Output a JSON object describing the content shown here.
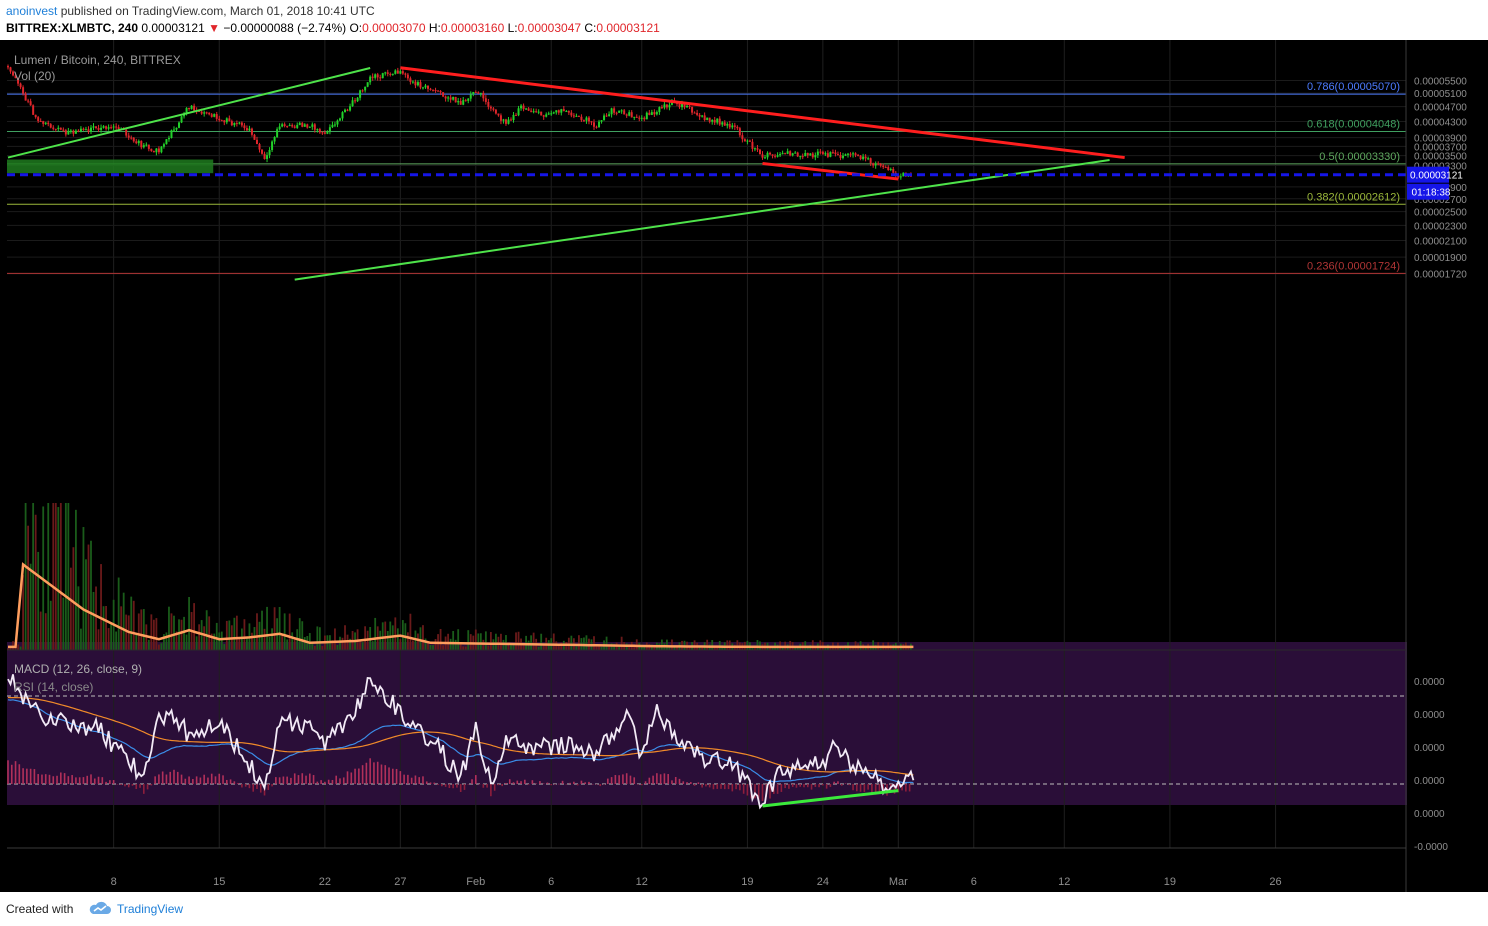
{
  "header": {
    "author": "anoinvest",
    "published_text": " published on TradingView.com, March 01, 2018 10:41 UTC",
    "symbol": "BITTREX:XLMBTC, 240",
    "price": "0.00003121",
    "change_arrow": "▼",
    "change": "−0.00000088 (−2.74%)",
    "o_label": "O:",
    "o_value": "0.00003070",
    "h_label": "H:",
    "h_value": "0.00003160",
    "l_label": "L:",
    "l_value": "0.00003047",
    "c_label": "C:",
    "c_value": "0.00003121"
  },
  "legend": {
    "series_title": "Lumen / Bitcoin, 240, BITTREX",
    "volume": "Vol (20)",
    "macd": "MACD (12, 26, close, 9)",
    "rsi": "RSI (14, close)"
  },
  "footer": {
    "created_with": "Created with",
    "brand": "TradingView"
  },
  "colors": {
    "background": "#000000",
    "bull": "#22d12a",
    "bear": "#e0262b",
    "trendline_red": "#ff1e1e",
    "trendline_green": "#4ee34a",
    "price_line": "#1515e8",
    "rsi_band": "#2a0e38",
    "volume_ma": "#ff9e5e",
    "rsi_line": "#f2eaf6",
    "macd_line": "#3b8de8",
    "signal_line": "#f08a2a",
    "fib_786": "#4d7cff",
    "fib_618": "#40a060",
    "fib_5": "#5fa85f",
    "fib_382": "#9bb83a",
    "fib_236": "#b03535"
  },
  "chart_data": [
    {
      "type": "candlestick",
      "title": "Lumen / Bitcoin, 240, BITTREX",
      "x_ticks": [
        "8",
        "15",
        "22",
        "27",
        "Feb",
        "6",
        "12",
        "19",
        "24",
        "Mar",
        "6",
        "12",
        "19",
        "26"
      ],
      "y_ticks": [
        "0.00005500",
        "0.00005100",
        "0.00004700",
        "0.00004300",
        "0.00003900",
        "0.00003700",
        "0.00003500",
        "0.00003300",
        "0.00002900",
        "0.00002700",
        "0.00002500",
        "0.00002300",
        "0.00002100",
        "0.00001900",
        "0.00001720"
      ],
      "y_scale": "log",
      "ylim": [
        1.66e-05,
        6.05e-05
      ],
      "current_price": "0.00003121",
      "countdown": "01:18:38",
      "fibonacci": [
        {
          "level": 0.786,
          "value": 5.07e-05,
          "label": "0.786(0.00005070)"
        },
        {
          "level": 0.618,
          "value": 4.048e-05,
          "label": "0.618(0.00004048)"
        },
        {
          "level": 0.5,
          "value": 3.33e-05,
          "label": "0.5(0.00003330)"
        },
        {
          "level": 0.382,
          "value": 2.612e-05,
          "label": "0.382(0.00002612)"
        },
        {
          "level": 0.236,
          "value": 1.724e-05,
          "label": "0.236(0.00001724)"
        }
      ],
      "support_zone": {
        "low": 3.15e-05,
        "high": 3.42e-05
      },
      "trendlines": [
        {
          "color": "red",
          "from": [
            "Jan 27",
            5.94e-05
          ],
          "to": [
            "Mar 16",
            3.46e-05
          ]
        },
        {
          "color": "red",
          "from": [
            "Feb 20",
            3.34e-05
          ],
          "to": [
            "Mar 1",
            3.04e-05
          ]
        },
        {
          "color": "green",
          "from": [
            "Jan 1",
            3.46e-05
          ],
          "to": [
            "Jan 25",
            5.93e-05
          ]
        },
        {
          "color": "green",
          "from": [
            "Jan 20",
            1.66e-05
          ],
          "to": [
            "Mar 15",
            3.41e-05
          ]
        }
      ],
      "close_path": [
        [
          "Jan 1",
          6e-05
        ],
        [
          "Jan 3",
          4.3e-05
        ],
        [
          "Jan 5",
          4e-05
        ],
        [
          "Jan 8",
          4.2e-05
        ],
        [
          "Jan 10",
          3.7e-05
        ],
        [
          "Jan 11",
          3.6e-05
        ],
        [
          "Jan 13",
          4.7e-05
        ],
        [
          "Jan 15",
          4.4e-05
        ],
        [
          "Jan 17",
          4.1e-05
        ],
        [
          "Jan 18",
          3.45e-05
        ],
        [
          "Jan 19",
          4.2e-05
        ],
        [
          "Jan 21",
          4.2e-05
        ],
        [
          "Jan 22",
          3.95e-05
        ],
        [
          "Jan 23",
          4.4e-05
        ],
        [
          "Jan 24",
          4.9e-05
        ],
        [
          "Jan 25",
          5.6e-05
        ],
        [
          "Jan 26",
          5.7e-05
        ],
        [
          "Jan 27",
          5.8e-05
        ],
        [
          "Jan 28",
          5.4e-05
        ],
        [
          "Jan 29",
          5.2e-05
        ],
        [
          "Jan 30",
          5e-05
        ],
        [
          "Jan 31",
          4.8e-05
        ],
        [
          "Feb 1",
          5.2e-05
        ],
        [
          "Feb 2",
          4.7e-05
        ],
        [
          "Feb 3",
          4.2e-05
        ],
        [
          "Feb 4",
          4.7e-05
        ],
        [
          "Feb 5",
          4.5e-05
        ],
        [
          "Feb 6",
          4.5e-05
        ],
        [
          "Feb 7",
          4.6e-05
        ],
        [
          "Feb 8",
          4.4e-05
        ],
        [
          "Feb 9",
          4.2e-05
        ],
        [
          "Feb 10",
          4.6e-05
        ],
        [
          "Feb 11",
          4.5e-05
        ],
        [
          "Feb 12",
          4.4e-05
        ],
        [
          "Feb 13",
          4.6e-05
        ],
        [
          "Feb 14",
          4.8e-05
        ],
        [
          "Feb 15",
          4.7e-05
        ],
        [
          "Feb 16",
          4.4e-05
        ],
        [
          "Feb 17",
          4.3e-05
        ],
        [
          "Feb 18",
          4.2e-05
        ],
        [
          "Feb 19",
          3.8e-05
        ],
        [
          "Feb 20",
          3.5e-05
        ],
        [
          "Feb 21",
          3.5e-05
        ],
        [
          "Feb 22",
          3.55e-05
        ],
        [
          "Feb 23",
          3.5e-05
        ],
        [
          "Feb 24",
          3.55e-05
        ],
        [
          "Feb 25",
          3.5e-05
        ],
        [
          "Feb 26",
          3.55e-05
        ],
        [
          "Feb 27",
          3.4e-05
        ],
        [
          "Feb 28",
          3.25e-05
        ],
        [
          "Mar 1",
          3.12e-05
        ]
      ]
    },
    {
      "type": "bar",
      "title": "Vol (20)",
      "ma_curve": [
        [
          1,
          0.95
        ],
        [
          3,
          0.7
        ],
        [
          5,
          0.45
        ],
        [
          8,
          0.2
        ],
        [
          10,
          0.12
        ],
        [
          12,
          0.22
        ],
        [
          14,
          0.12
        ],
        [
          16,
          0.14
        ],
        [
          18,
          0.18
        ],
        [
          20,
          0.08
        ],
        [
          23,
          0.1
        ],
        [
          26,
          0.16
        ],
        [
          28,
          0.08
        ],
        [
          32,
          0.07
        ],
        [
          36,
          0.06
        ],
        [
          40,
          0.05
        ],
        [
          44,
          0.04
        ],
        [
          50,
          0.035
        ],
        [
          60,
          0.035
        ]
      ]
    },
    {
      "type": "line",
      "title": "RSI (14, close)",
      "y_ticks": [
        "0.0000",
        "0.0000",
        "0.0000",
        "0.0000",
        "0.0000",
        "-0.0000"
      ],
      "upper_band": 70,
      "lower_band": 30,
      "rsi_path": [
        [
          "Jan 1",
          78
        ],
        [
          "Jan 3",
          62
        ],
        [
          "Jan 5",
          58
        ],
        [
          "Jan 7",
          55
        ],
        [
          "Jan 9",
          40
        ],
        [
          "Jan 10",
          34
        ],
        [
          "Jan 11",
          58
        ],
        [
          "Jan 12",
          62
        ],
        [
          "Jan 13",
          52
        ],
        [
          "Jan 15",
          60
        ],
        [
          "Jan 17",
          38
        ],
        [
          "Jan 18",
          30
        ],
        [
          "Jan 19",
          58
        ],
        [
          "Jan 21",
          56
        ],
        [
          "Jan 22",
          48
        ],
        [
          "Jan 24",
          64
        ],
        [
          "Jan 25",
          78
        ],
        [
          "Jan 26",
          70
        ],
        [
          "Jan 27",
          62
        ],
        [
          "Jan 29",
          50
        ],
        [
          "Jan 31",
          34
        ],
        [
          "Feb 1",
          54
        ],
        [
          "Feb 2",
          30
        ],
        [
          "Feb 3",
          50
        ],
        [
          "Feb 5",
          46
        ],
        [
          "Feb 7",
          48
        ],
        [
          "Feb 9",
          44
        ],
        [
          "Feb 11",
          60
        ],
        [
          "Feb 12",
          44
        ],
        [
          "Feb 13",
          62
        ],
        [
          "Feb 14",
          54
        ],
        [
          "Feb 16",
          42
        ],
        [
          "Feb 18",
          38
        ],
        [
          "Feb 19",
          30
        ],
        [
          "Feb 20",
          22
        ],
        [
          "Feb 21",
          34
        ],
        [
          "Feb 22",
          38
        ],
        [
          "Feb 24",
          40
        ],
        [
          "Feb 25",
          48
        ],
        [
          "Feb 26",
          38
        ],
        [
          "Feb 27",
          34
        ],
        [
          "Feb 28",
          30
        ],
        [
          "Mar 1",
          32
        ]
      ],
      "bullish_divergence": {
        "from": [
          "Feb 20",
          20
        ],
        "to": [
          "Mar 1",
          27
        ]
      }
    }
  ]
}
